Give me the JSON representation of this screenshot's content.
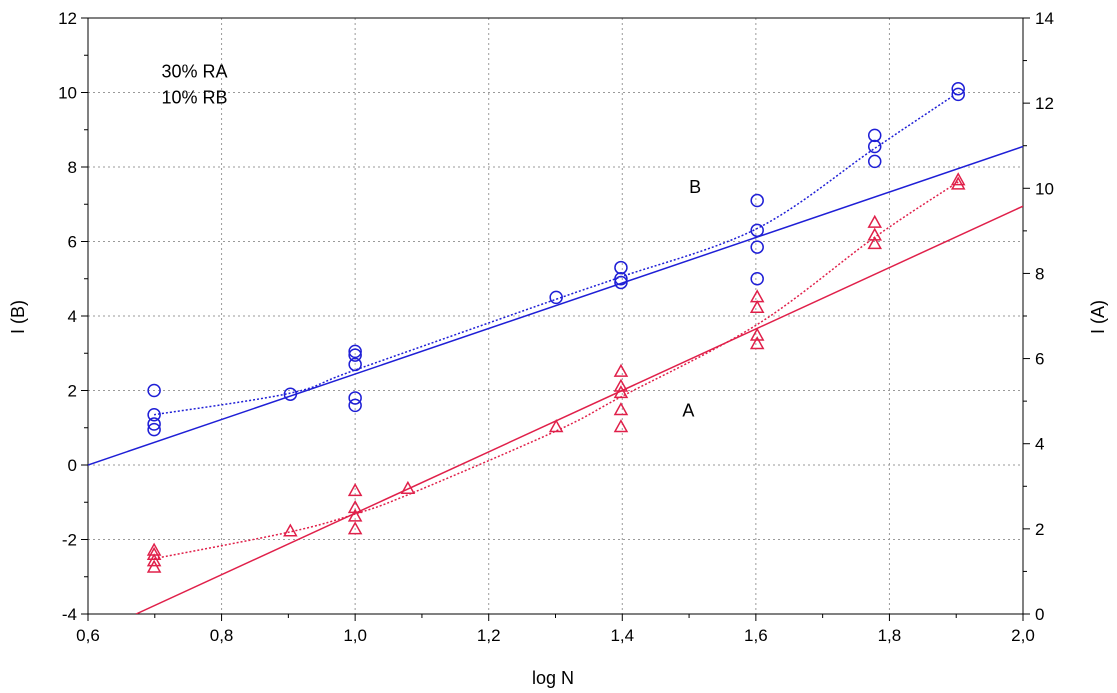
{
  "chart_data": {
    "type": "scatter",
    "title": "",
    "xlabel": "log N",
    "ylabel_left": "I  (B)",
    "ylabel_right": "I  (A)",
    "xlim": [
      0.6,
      2.0
    ],
    "ylim_left": [
      -4,
      12
    ],
    "ylim_right": [
      0,
      14
    ],
    "grid": true,
    "x_ticks": [
      0.6,
      0.8,
      1.0,
      1.2,
      1.4,
      1.6,
      1.8,
      2.0
    ],
    "x_tick_labels": [
      "0,6",
      "0,8",
      "1,0",
      "1,2",
      "1,4",
      "1,6",
      "1,8",
      "2,0"
    ],
    "y_left_ticks": [
      -4,
      -2,
      0,
      2,
      4,
      6,
      8,
      10,
      12
    ],
    "y_left_tick_labels": [
      "-4",
      "-2",
      "0",
      "2",
      "4",
      "6",
      "8",
      "10",
      "12"
    ],
    "y_right_ticks": [
      0,
      2,
      4,
      6,
      8,
      10,
      12,
      14
    ],
    "y_right_tick_labels": [
      "0",
      "2",
      "4",
      "6",
      "8",
      "10",
      "12",
      "14"
    ],
    "annotations": [
      {
        "text": "30% RA",
        "x": 0.71,
        "y": 10.4
      },
      {
        "text": "10% RB",
        "x": 0.71,
        "y": 9.7
      },
      {
        "text": "B",
        "x": 1.5,
        "y": 7.3
      },
      {
        "text": "A",
        "x": 1.49,
        "y": 1.3
      }
    ],
    "series": [
      {
        "axis": "left",
        "marker": "circle",
        "color": "#1f1fd6",
        "points": [
          [
            0.699,
            2.0
          ],
          [
            0.699,
            1.35
          ],
          [
            0.699,
            1.1
          ],
          [
            0.699,
            0.95
          ],
          [
            0.903,
            1.9
          ],
          [
            1.0,
            3.05
          ],
          [
            1.0,
            2.95
          ],
          [
            1.0,
            2.7
          ],
          [
            1.0,
            1.8
          ],
          [
            1.0,
            1.6
          ],
          [
            1.301,
            4.5
          ],
          [
            1.398,
            5.3
          ],
          [
            1.398,
            5.0
          ],
          [
            1.398,
            4.9
          ],
          [
            1.602,
            7.1
          ],
          [
            1.602,
            6.3
          ],
          [
            1.602,
            5.85
          ],
          [
            1.602,
            5.0
          ],
          [
            1.778,
            8.85
          ],
          [
            1.778,
            8.55
          ],
          [
            1.778,
            8.15
          ],
          [
            1.903,
            10.1
          ],
          [
            1.903,
            9.95
          ]
        ],
        "fit_line": [
          [
            0.6,
            0.0
          ],
          [
            2.0,
            8.55
          ]
        ],
        "smooth_curve": [
          [
            0.699,
            1.35
          ],
          [
            0.903,
            1.93
          ],
          [
            1.0,
            2.55
          ],
          [
            1.301,
            4.45
          ],
          [
            1.398,
            5.05
          ],
          [
            1.602,
            6.35
          ],
          [
            1.778,
            8.5
          ],
          [
            1.903,
            10.0
          ]
        ]
      },
      {
        "axis": "right",
        "marker": "triangle",
        "color": "#e0204a",
        "points": [
          [
            0.699,
            1.5
          ],
          [
            0.699,
            1.4
          ],
          [
            0.699,
            1.25
          ],
          [
            0.699,
            1.1
          ],
          [
            0.903,
            1.95
          ],
          [
            1.0,
            2.9
          ],
          [
            1.0,
            2.5
          ],
          [
            1.0,
            2.3
          ],
          [
            1.0,
            2.0
          ],
          [
            1.079,
            2.95
          ],
          [
            1.301,
            4.4
          ],
          [
            1.398,
            5.7
          ],
          [
            1.398,
            5.35
          ],
          [
            1.398,
            5.2
          ],
          [
            1.398,
            4.8
          ],
          [
            1.398,
            4.4
          ],
          [
            1.602,
            7.45
          ],
          [
            1.602,
            7.2
          ],
          [
            1.602,
            6.55
          ],
          [
            1.602,
            6.35
          ],
          [
            1.778,
            9.2
          ],
          [
            1.778,
            8.9
          ],
          [
            1.778,
            8.7
          ],
          [
            1.903,
            10.2
          ],
          [
            1.903,
            10.1
          ]
        ],
        "fit_line": [
          [
            0.672,
            0.0
          ],
          [
            2.0,
            9.58
          ]
        ],
        "smooth_curve": [
          [
            0.699,
            1.3
          ],
          [
            0.903,
            1.93
          ],
          [
            1.0,
            2.35
          ],
          [
            1.079,
            2.8
          ],
          [
            1.301,
            4.3
          ],
          [
            1.398,
            5.1
          ],
          [
            1.602,
            6.8
          ],
          [
            1.778,
            8.85
          ],
          [
            1.903,
            10.15
          ]
        ]
      }
    ]
  }
}
